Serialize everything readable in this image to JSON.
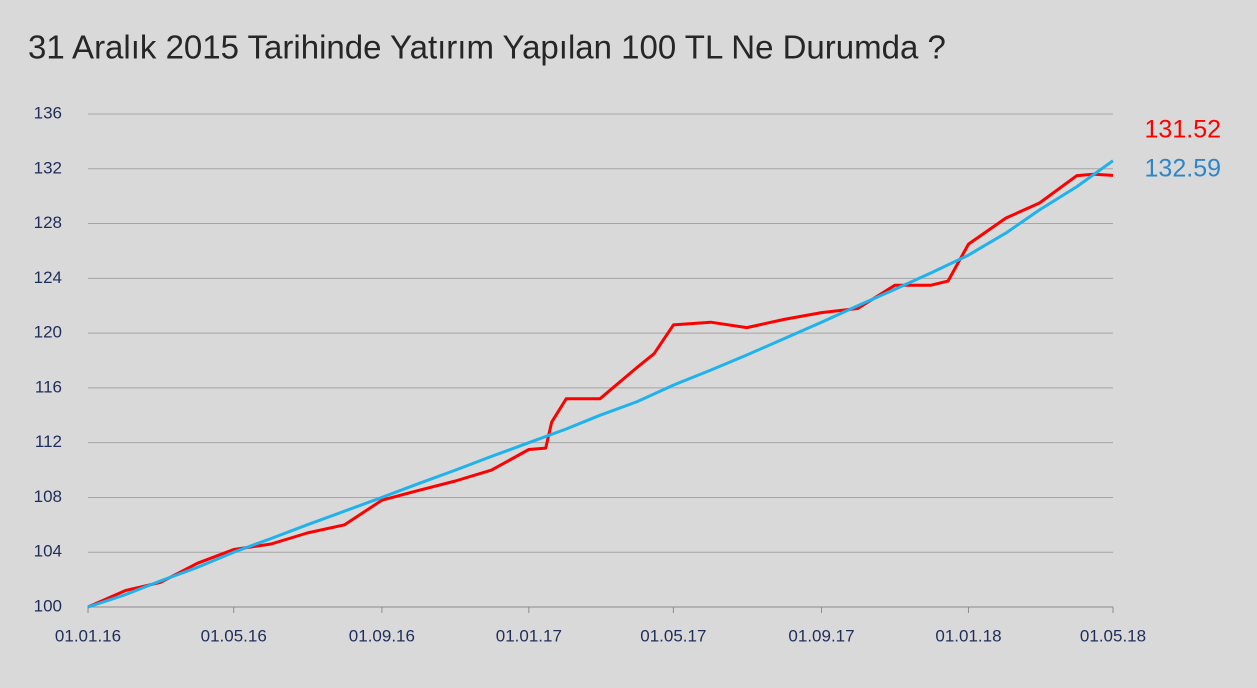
{
  "chart_data": {
    "type": "line",
    "title": "31 Aralık 2015 Tarihinde Yatırım Yapılan 100 TL Ne Durumda ?",
    "xlim": [
      "01.01.16",
      "01.05.18"
    ],
    "xticks": [
      "01.01.16",
      "01.05.16",
      "01.09.16",
      "01.01.17",
      "01.05.17",
      "01.09.17",
      "01.01.18",
      "01.05.18"
    ],
    "ylim": [
      100,
      136
    ],
    "yticks": [
      100,
      104,
      108,
      112,
      116,
      120,
      124,
      128,
      132,
      136
    ],
    "grid": true,
    "series": [
      {
        "color": "#ff0000",
        "x": [
          "01.01.16",
          "01.02.16",
          "01.03.16",
          "01.04.16",
          "01.05.16",
          "01.06.16",
          "01.07.16",
          "01.08.16",
          "01.09.16",
          "01.10.16",
          "01.11.16",
          "01.12.16",
          "01.01.17",
          "15.01.17",
          "20.01.17",
          "01.02.17",
          "01.03.17",
          "01.04.17",
          "15.04.17",
          "01.05.17",
          "01.06.17",
          "01.07.17",
          "01.08.17",
          "01.09.17",
          "01.10.17",
          "01.11.17",
          "01.12.17",
          "15.12.17",
          "01.01.18",
          "01.02.18",
          "01.03.18",
          "01.04.18",
          "15.04.18",
          "01.05.18"
        ],
        "values": [
          100,
          101.2,
          101.8,
          103.2,
          104.2,
          104.6,
          105.4,
          106.0,
          107.8,
          108.5,
          109.2,
          110.0,
          111.5,
          111.6,
          113.5,
          115.2,
          115.2,
          117.5,
          118.5,
          120.6,
          120.8,
          120.4,
          121.0,
          121.5,
          121.8,
          123.5,
          123.5,
          123.8,
          126.5,
          128.4,
          129.5,
          131.5,
          131.6,
          131.52
        ]
      },
      {
        "color": "#1fb2ec",
        "x": [
          "01.01.16",
          "01.02.16",
          "01.03.16",
          "01.04.16",
          "01.05.16",
          "01.06.16",
          "01.07.16",
          "01.08.16",
          "01.09.16",
          "01.10.16",
          "01.11.16",
          "01.12.16",
          "01.01.17",
          "01.02.17",
          "01.03.17",
          "01.04.17",
          "01.05.17",
          "01.06.17",
          "01.07.17",
          "01.08.17",
          "01.09.17",
          "01.10.17",
          "01.11.17",
          "01.12.17",
          "01.01.18",
          "01.02.18",
          "01.03.18",
          "01.04.18",
          "01.05.18"
        ],
        "values": [
          100,
          100.9,
          101.9,
          102.9,
          104.0,
          105.0,
          106.0,
          107.0,
          108.0,
          109.0,
          110.0,
          111.0,
          112.0,
          113.0,
          114.0,
          115.0,
          116.2,
          117.3,
          118.4,
          119.6,
          120.8,
          122.0,
          123.2,
          124.4,
          125.7,
          127.3,
          129.0,
          130.7,
          132.59
        ]
      }
    ]
  }
}
